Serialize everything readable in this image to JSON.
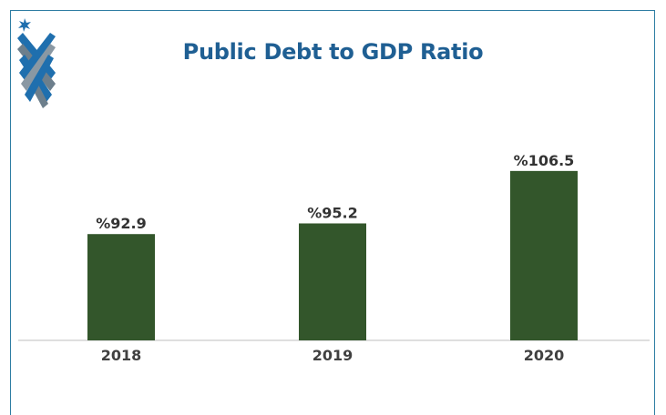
{
  "chart_data": {
    "type": "bar",
    "title": "Public Debt to GDP Ratio",
    "categories": [
      "2018",
      "2019",
      "2020"
    ],
    "values": [
      92.9,
      95.2,
      106.5
    ],
    "value_labels": [
      "%92.9",
      "%95.2",
      "%106.5"
    ],
    "xlabel": "",
    "ylabel": "",
    "ylim": [
      70,
      110
    ],
    "grid": false,
    "legend": "none"
  },
  "colors": {
    "bar": "#33562b",
    "title": "#1f5f93",
    "frame": "#2e7da3",
    "axis": "#bfbfbf"
  },
  "logo": {
    "icon": "star-stripes-logo-icon"
  }
}
